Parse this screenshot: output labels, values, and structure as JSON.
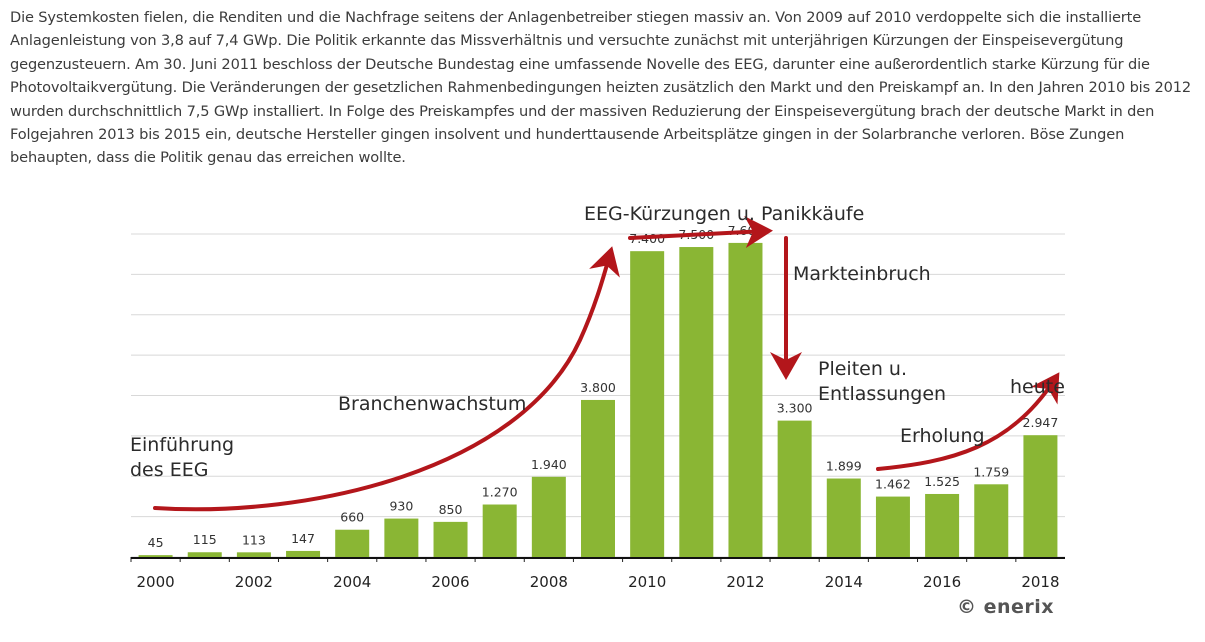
{
  "article": {
    "paragraph": "Die Systemkosten fielen, die Renditen und die Nachfrage seitens der Anlagenbetreiber stiegen massiv an. Von 2009 auf 2010 verdoppelte sich die installierte Anlagenleistung von 3,8 auf 7,4 GWp. Die Politik erkannte das Missverhältnis und versuchte zunächst mit unterjährigen Kürzungen der Einspeisevergütung gegenzusteuern.  Am 30. Juni 2011 beschloss der Deutsche Bundestag eine umfassende Novelle des EEG, darunter eine außerordentlich starke Kürzung für die Photovoltaikvergütung. Die Veränderungen der gesetzlichen Rahmenbedingungen heizten zusätzlich den Markt und den Preiskampf an. In den Jahren 2010 bis 2012 wurden durchschnittlich 7,5 GWp installiert. In Folge des Preiskampfes und der massiven Reduzierung der Einspeisevergütung brach der deutsche Markt in den Folgejahren 2013 bis 2015 ein, deutsche Hersteller gingen  insolvent und hunderttausende Arbeitsplätze gingen in der Solarbranche verloren. Böse Zungen behaupten, dass die Politik genau das erreichen wollte."
  },
  "chart_data": {
    "type": "bar",
    "categories": [
      "2000",
      "2001",
      "2002",
      "2003",
      "2004",
      "2005",
      "2006",
      "2007",
      "2008",
      "2009",
      "2010",
      "2011",
      "2012",
      "2013",
      "2014",
      "2015",
      "2016",
      "2017",
      "2018"
    ],
    "values": [
      45,
      115,
      113,
      147,
      660,
      930,
      850,
      1270,
      1940,
      3800,
      7400,
      7500,
      7600,
      3300,
      1899,
      1462,
      1525,
      1759,
      2947
    ],
    "value_labels": [
      "45",
      "115",
      "113",
      "147",
      "660",
      "930",
      "850",
      "1.270",
      "1.940",
      "3.800",
      "7.400",
      "7.500",
      "7.600",
      "3.300",
      "1.899",
      "1.462",
      "1.525",
      "1.759",
      "2.947"
    ],
    "x_tick_labels": [
      "2000",
      "2002",
      "2004",
      "2006",
      "2008",
      "2010",
      "2012",
      "2014",
      "2016",
      "2018"
    ],
    "ylim": [
      0,
      8000
    ],
    "grid": true,
    "title": "",
    "xlabel": "",
    "ylabel": "",
    "annotations": {
      "intro": [
        "Einführung",
        "des EEG"
      ],
      "growth": "Branchenwachstum",
      "cuts": "EEG-Kürzungen u. Panikkäufe",
      "collapse": "Markteinbruch",
      "bankruptcies": [
        "Pleiten u.",
        "Entlassungen"
      ],
      "recovery": "Erholung",
      "today": "heute"
    },
    "colors": {
      "bar": "#8ab634",
      "arrow": "#b3161b",
      "grid": "#d8d8d8"
    }
  },
  "credit": "© enerix"
}
